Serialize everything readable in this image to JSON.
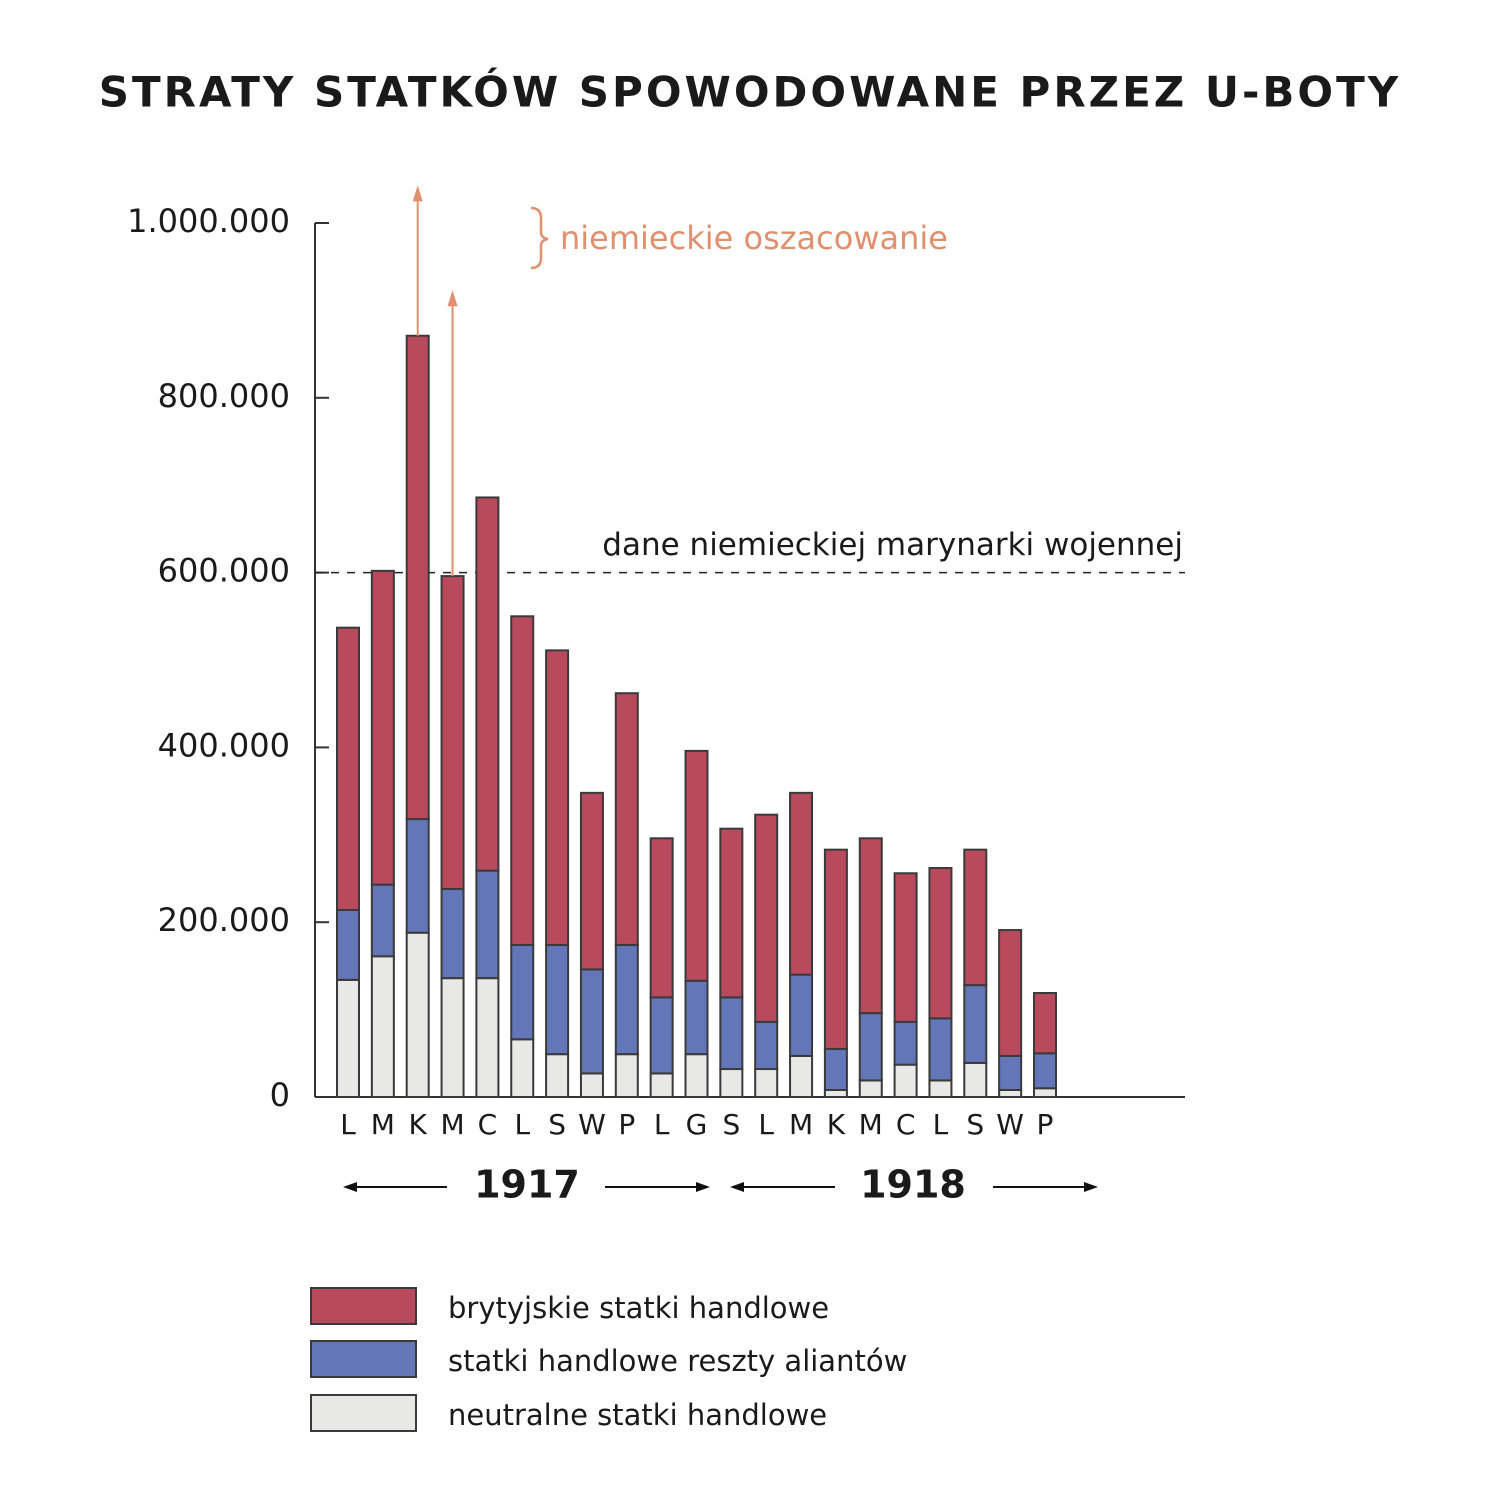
{
  "chart_data": {
    "type": "stacked_bar",
    "title": "STRATY STATKÓW SPOWODOWANE PRZEZ U-BOTY",
    "categories": [
      "L",
      "M",
      "K",
      "M",
      "C",
      "L",
      "S",
      "W",
      "P",
      "L",
      "G",
      "S",
      "L",
      "M",
      "K",
      "M",
      "C",
      "L",
      "S",
      "W",
      "P"
    ],
    "series": [
      {
        "name": "neutralne statki handlowe",
        "color": "#e8e8e6",
        "values": [
          134000,
          161000,
          188000,
          136000,
          136000,
          66000,
          49000,
          27000,
          49000,
          27000,
          49000,
          32000,
          32000,
          47000,
          8000,
          19000,
          37000,
          19000,
          39000,
          8000,
          10000
        ]
      },
      {
        "name": "statki handlowe reszty aliantów",
        "color": "#6276b8",
        "values": [
          80000,
          82000,
          130000,
          102000,
          123000,
          108000,
          125000,
          119000,
          125000,
          87000,
          84000,
          82000,
          54000,
          93000,
          47000,
          77000,
          49000,
          71000,
          89000,
          39000,
          40000
        ]
      },
      {
        "name": "brytyjskie statki handlowe",
        "color": "#b94a5e",
        "values": [
          323000,
          359000,
          553000,
          358000,
          427000,
          376000,
          337000,
          202000,
          288000,
          182000,
          263000,
          193000,
          237000,
          208000,
          228000,
          200000,
          170000,
          172000,
          155000,
          144000,
          69000
        ]
      }
    ],
    "estimates": {
      "label": "niemieckie oszacowanie",
      "color": "#e0906e",
      "values": [
        null,
        null,
        1043000,
        923000,
        null,
        null,
        null,
        null,
        null,
        null,
        null,
        null,
        null,
        null,
        null,
        null,
        null,
        null,
        null,
        null,
        null
      ]
    },
    "reference_line": {
      "label": "dane niemieckiej marynarki wojennej",
      "value": 600000
    },
    "year_labels": [
      "1917",
      "1918"
    ],
    "ylim": [
      0,
      1000000
    ],
    "yticks": [
      0,
      {
        "value": 200000,
        "label": "200.000"
      },
      {
        "value": 400000,
        "label": "400.000"
      },
      {
        "value": 600000,
        "label": "600.000"
      },
      {
        "value": 800000,
        "label": "800.000"
      },
      {
        "value": 1000000,
        "label": "1.000.000"
      }
    ]
  }
}
